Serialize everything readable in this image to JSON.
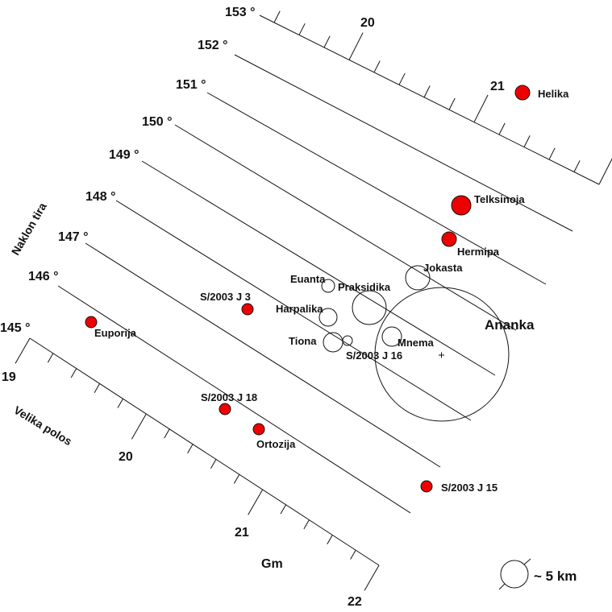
{
  "inclination_axis": {
    "title": "Naklon tira",
    "ticks": [
      "145 °",
      "146 °",
      "147 °",
      "148 °",
      "149 °",
      "150 °",
      "151 °",
      "152 °",
      "153 °"
    ]
  },
  "semimajor_axis": {
    "title": "Velika polos",
    "unit": "Gm",
    "bottom_ticks": [
      "19",
      "20",
      "21",
      "22"
    ],
    "top_ticks": [
      "20",
      "21"
    ]
  },
  "colors": {
    "prograde_marker": "#ee0000",
    "outline": "#111111"
  },
  "moons": [
    {
      "name": "Helika",
      "filled": true
    },
    {
      "name": "Telksinoja",
      "filled": true
    },
    {
      "name": "Hermipa",
      "filled": true
    },
    {
      "name": "Jokasta",
      "filled": false
    },
    {
      "name": "Euanta",
      "filled": false
    },
    {
      "name": "Praksidika",
      "filled": false
    },
    {
      "name": "Harpalika",
      "filled": false
    },
    {
      "name": "Tiona",
      "filled": false
    },
    {
      "name": "S/2003 J 16",
      "filled": false
    },
    {
      "name": "Mnema",
      "filled": false
    },
    {
      "name": "Ananka",
      "filled": false
    },
    {
      "name": "S/2003 J 3",
      "filled": true
    },
    {
      "name": "Euporija",
      "filled": true
    },
    {
      "name": "S/2003 J 18",
      "filled": true
    },
    {
      "name": "Ortozija",
      "filled": true
    },
    {
      "name": "S/2003 J 15",
      "filled": true
    }
  ],
  "scale_legend": {
    "label": "~ 5 km"
  }
}
